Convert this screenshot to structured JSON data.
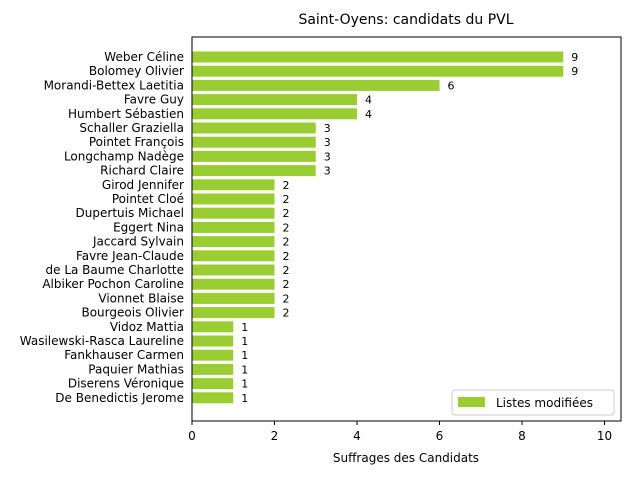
{
  "chart_data": {
    "type": "bar",
    "orientation": "horizontal",
    "title": "Saint-Oyens: candidats du PVL",
    "xlabel": "Suffrages des Candidats",
    "ylabel": "",
    "xlim": [
      0,
      10.4
    ],
    "xticks": [
      "0",
      "2",
      "4",
      "6",
      "8",
      "10"
    ],
    "grid": false,
    "legend_position": "lower-right",
    "bar_color": "#9ACD32",
    "categories": [
      "Weber Céline",
      "Bolomey Olivier",
      "Morandi-Bettex Laetitia",
      "Favre Guy",
      "Humbert Sébastien",
      "Schaller Graziella",
      "Pointet François",
      "Longchamp Nadège",
      "Richard Claire",
      "Girod Jennifer",
      "Pointet Cloé",
      "Dupertuis Michael",
      "Eggert Nina",
      "Jaccard Sylvain",
      "Favre Jean-Claude",
      "de La Baume Charlotte",
      "Albiker Pochon Caroline",
      "Vionnet Blaise",
      "Bourgeois Olivier",
      "Vidoz Mattia",
      "Wasilewski-Rasca Laureline",
      "Fankhauser Carmen",
      "Paquier Mathias",
      "Diserens Véronique",
      "De Benedictis Jerome"
    ],
    "series": [
      {
        "name": "Listes modifiées",
        "values": [
          9,
          9,
          6,
          4,
          4,
          3,
          3,
          3,
          3,
          2,
          2,
          2,
          2,
          2,
          2,
          2,
          2,
          2,
          2,
          1,
          1,
          1,
          1,
          1,
          1
        ]
      }
    ]
  }
}
